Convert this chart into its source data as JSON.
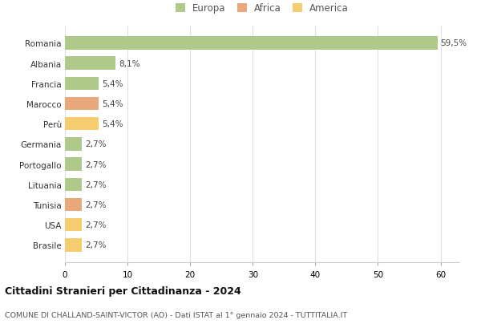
{
  "countries": [
    "Romania",
    "Albania",
    "Francia",
    "Marocco",
    "Perù",
    "Germania",
    "Portogallo",
    "Lituania",
    "Tunisia",
    "USA",
    "Brasile"
  ],
  "values": [
    59.5,
    8.1,
    5.4,
    5.4,
    5.4,
    2.7,
    2.7,
    2.7,
    2.7,
    2.7,
    2.7
  ],
  "labels": [
    "59,5%",
    "8,1%",
    "5,4%",
    "5,4%",
    "5,4%",
    "2,7%",
    "2,7%",
    "2,7%",
    "2,7%",
    "2,7%",
    "2,7%"
  ],
  "colors": [
    "#aec98a",
    "#aec98a",
    "#aec98a",
    "#e8a87c",
    "#f5cc6e",
    "#aec98a",
    "#aec98a",
    "#aec98a",
    "#e8a87c",
    "#f5cc6e",
    "#f5cc6e"
  ],
  "legend_labels": [
    "Europa",
    "Africa",
    "America"
  ],
  "legend_colors": [
    "#aec98a",
    "#e8a87c",
    "#f5cc6e"
  ],
  "title": "Cittadini Stranieri per Cittadinanza - 2024",
  "subtitle": "COMUNE DI CHALLAND-SAINT-VICTOR (AO) - Dati ISTAT al 1° gennaio 2024 - TUTTITALIA.IT",
  "xlim": [
    0,
    63
  ],
  "background_color": "#ffffff",
  "plot_bg_color": "#ffffff",
  "grid_color": "#e0e0e0"
}
